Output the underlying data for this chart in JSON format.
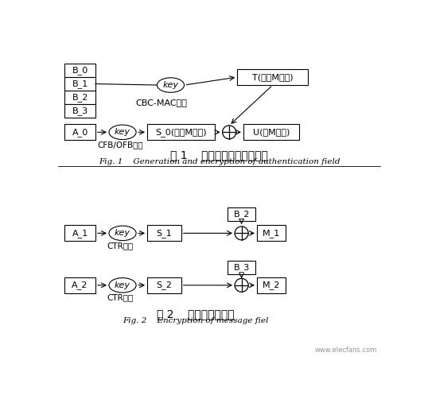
{
  "bg_color": "#ffffff",
  "fig_width": 5.38,
  "fig_height": 5.07,
  "dpi": 100,
  "diagram1": {
    "title_zh": "图 1    认证字段的生成和加密",
    "title_en": "Fig. 1    Generation and encryption of authentication field",
    "boxes_B": [
      "B_0",
      "B_1",
      "B_2",
      "B_3"
    ],
    "box_A0": "A_0",
    "box_S0": "S_0(取前M字节)",
    "box_T": "T(取前M字节)",
    "box_U": "U(共M字节)",
    "label_cbc": "CBC-MAC认证",
    "label_cfb": "CFB/OFB加密",
    "key_label": "key"
  },
  "diagram2": {
    "title_zh": "图 2    消息字段的加密",
    "title_en": "Fig. 2    Encryption of message fiel",
    "box_A1": "A_1",
    "box_A2": "A_2",
    "box_S1": "S_1",
    "box_S2": "S_2",
    "box_B2": "B_2",
    "box_B3": "B_3",
    "box_M1": "M_1",
    "box_M2": "M_2",
    "label_ctr1": "CTR加密",
    "label_ctr2": "CTR加密",
    "key_label": "key"
  },
  "watermark": "www.elecfans.com"
}
